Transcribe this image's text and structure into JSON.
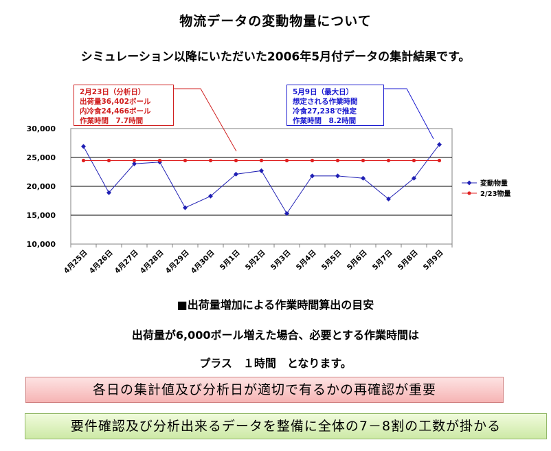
{
  "page": {
    "title": "物流データの変動物量について",
    "subtitle": "シミュレーション以降にいただいた2006年5月付データの集計結果です。"
  },
  "callouts": {
    "left": {
      "lines": [
        "2月23日（分析日）",
        "出荷量36,402ボール",
        "内冷食24,466ボール",
        "作業時間　7.7時間"
      ],
      "color": "#d02020"
    },
    "right": {
      "lines": [
        "5月9日（最大日）",
        "想定される作業時間",
        "冷食27,238で推定",
        "作業時間　8.2時間"
      ],
      "color": "#1a1ad0"
    }
  },
  "chart_data": {
    "type": "line",
    "categories": [
      "4月25日",
      "4月26日",
      "4月27日",
      "4月28日",
      "4月29日",
      "4月30日",
      "5月1日",
      "5月2日",
      "5月3日",
      "5月4日",
      "5月5日",
      "5月6日",
      "5月7日",
      "5月8日",
      "5月9日"
    ],
    "series": [
      {
        "name": "変動物量",
        "color": "#1f1fb4",
        "marker": "diamond",
        "values": [
          26900,
          18900,
          23900,
          24200,
          16300,
          18300,
          22100,
          22700,
          15300,
          21800,
          21800,
          21400,
          17800,
          21400,
          27238
        ]
      },
      {
        "name": "2/23物量",
        "color": "#e02020",
        "marker": "circle",
        "values": [
          24466,
          24466,
          24466,
          24466,
          24466,
          24466,
          24466,
          24466,
          24466,
          24466,
          24466,
          24466,
          24466,
          24466,
          24466
        ]
      }
    ],
    "ylim": [
      10000,
      30000
    ],
    "yticks": [
      "10,000",
      "15,000",
      "20,000",
      "25,000",
      "30,000"
    ],
    "ytick_values": [
      10000,
      15000,
      20000,
      25000,
      30000
    ],
    "grid": true,
    "legend": "right"
  },
  "section": {
    "heading": "■出荷量増加による作業時間算出の目安",
    "line1": "出荷量が6,000ボール増えた場合、必要とする作業時間は",
    "line2": "プラス　１時間　となります。"
  },
  "banners": {
    "pink": "各日の集計値及び分析日が適切で有るかの再確認が重要",
    "green": "要件確認及び分析出来るデータを整備に全体の7－8割の工数が掛かる"
  }
}
